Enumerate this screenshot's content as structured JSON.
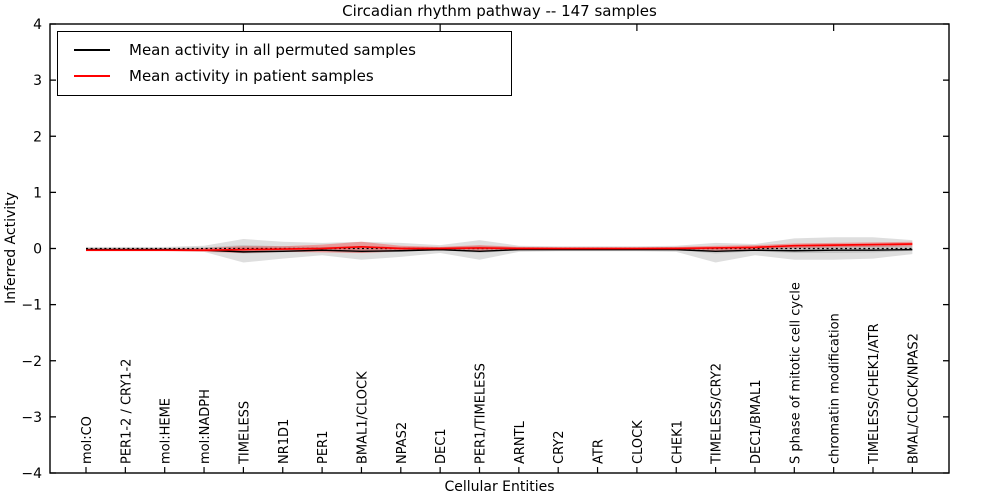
{
  "chart_data": {
    "type": "line",
    "title": "Circadian rhythm pathway -- 147 samples",
    "xlabel": "Cellular Entities",
    "ylabel": "Inferred Activity",
    "ylim": [
      -4,
      4
    ],
    "grid": false,
    "legend_position": "upper left",
    "legend": [
      {
        "label": "Mean activity in all permuted samples",
        "color": "#000000"
      },
      {
        "label": "Mean activity in patient samples",
        "color": "#ff0000"
      }
    ],
    "colors": {
      "permuted_line": "#000000",
      "patient_line": "#ff0000",
      "permuted_band": "rgba(0,0,0,0.13)",
      "permuted_core_band": "rgba(0,0,0,0.12)",
      "patient_band": "rgba(255,0,0,0.30)",
      "zero_line": "#000000"
    },
    "yticks": {
      "values": [
        -4,
        -3,
        -2,
        -1,
        0,
        1,
        2,
        3,
        4
      ],
      "labels": [
        "−4",
        "−3",
        "−2",
        "−1",
        "0",
        "1",
        "2",
        "3",
        "4"
      ]
    },
    "top_tick_indices": [
      4,
      9,
      14,
      19
    ],
    "categories": [
      "mol:CO",
      "PER1-2 / CRY1-2",
      "mol:HEME",
      "mol:NADPH",
      "TIMELESS",
      "NR1D1",
      "PER1",
      "BMAL1/CLOCK",
      "NPAS2",
      "DEC1",
      "PER1/TIMELESS",
      "ARNTL",
      "CRY2",
      "ATR",
      "CLOCK",
      "CHEK1",
      "TIMELESS/CRY2",
      "DEC1/BMAL1",
      "S phase of mitotic cell cycle",
      "chromatin modification",
      "TIMELESS/CHEK1/ATR",
      "BMAL/CLOCK/NPAS2"
    ],
    "series": [
      {
        "name": "Mean activity in all permuted samples",
        "values": [
          -0.02,
          -0.02,
          -0.02,
          -0.03,
          -0.06,
          -0.05,
          -0.03,
          -0.05,
          -0.04,
          -0.02,
          -0.05,
          -0.02,
          -0.02,
          -0.02,
          -0.02,
          -0.02,
          -0.05,
          -0.03,
          -0.04,
          -0.03,
          -0.03,
          -0.02
        ]
      },
      {
        "name": "Mean activity in patient samples",
        "values": [
          -0.03,
          -0.03,
          -0.03,
          -0.03,
          -0.02,
          -0.01,
          0.0,
          0.03,
          0.0,
          0.0,
          0.01,
          0.0,
          0.0,
          0.0,
          0.0,
          0.0,
          0.01,
          0.02,
          0.05,
          0.06,
          0.07,
          0.08
        ]
      }
    ],
    "bands": {
      "permuted_range": {
        "hi": [
          0.03,
          0.03,
          0.03,
          0.05,
          0.17,
          0.12,
          0.1,
          0.12,
          0.1,
          0.06,
          0.15,
          0.05,
          0.04,
          0.04,
          0.04,
          0.05,
          0.1,
          0.08,
          0.18,
          0.2,
          0.2,
          0.15
        ],
        "lo": [
          -0.04,
          -0.04,
          -0.04,
          -0.06,
          -0.25,
          -0.18,
          -0.12,
          -0.2,
          -0.15,
          -0.08,
          -0.2,
          -0.06,
          -0.05,
          -0.05,
          -0.05,
          -0.06,
          -0.25,
          -0.12,
          -0.2,
          -0.2,
          -0.18,
          -0.1
        ]
      },
      "permuted_core": {
        "hi": [
          0.01,
          0.01,
          0.01,
          0.02,
          0.06,
          0.04,
          0.03,
          0.04,
          0.03,
          0.02,
          0.05,
          0.02,
          0.01,
          0.01,
          0.01,
          0.02,
          0.03,
          0.03,
          0.06,
          0.07,
          0.07,
          0.05
        ],
        "lo": [
          -0.02,
          -0.02,
          -0.02,
          -0.03,
          -0.09,
          -0.07,
          -0.05,
          -0.08,
          -0.06,
          -0.03,
          -0.08,
          -0.03,
          -0.02,
          -0.02,
          -0.02,
          -0.03,
          -0.09,
          -0.05,
          -0.08,
          -0.08,
          -0.07,
          -0.04
        ]
      },
      "patient_range": {
        "hi": [
          0.0,
          0.0,
          0.0,
          0.01,
          0.04,
          0.04,
          0.07,
          0.12,
          0.05,
          0.03,
          0.06,
          0.03,
          0.02,
          0.02,
          0.02,
          0.03,
          0.05,
          0.06,
          0.09,
          0.1,
          0.11,
          0.12
        ],
        "lo": [
          -0.05,
          -0.05,
          -0.05,
          -0.06,
          -0.08,
          -0.06,
          -0.07,
          -0.08,
          -0.05,
          -0.03,
          -0.05,
          -0.03,
          -0.02,
          -0.02,
          -0.02,
          -0.03,
          -0.04,
          -0.02,
          0.01,
          0.02,
          0.03,
          0.04
        ]
      }
    }
  }
}
